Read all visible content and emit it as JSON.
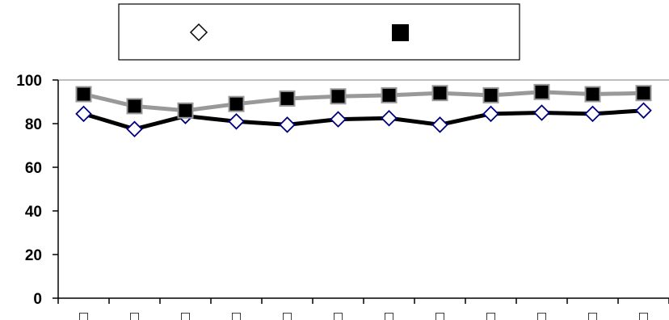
{
  "chart_data": {
    "type": "line",
    "title": "",
    "xlabel": "",
    "ylabel": "",
    "ylim": [
      0,
      100
    ],
    "yticks": [
      "0",
      "20",
      "40",
      "60",
      "80",
      "100"
    ],
    "categories": [
      "□",
      "□",
      "□",
      "□",
      "□",
      "□",
      "□",
      "□",
      "□",
      "□",
      "□",
      "□"
    ],
    "grid": false,
    "legend": {
      "placement": "top-center",
      "entries": [
        {
          "marker": "open-diamond",
          "label": ""
        },
        {
          "marker": "filled-square",
          "label": ""
        }
      ]
    },
    "series": [
      {
        "marker": "open-diamond",
        "line_color": "#000000",
        "marker_edge": "#000080",
        "values": [
          84.5,
          77.5,
          83.5,
          81,
          79.5,
          82,
          82.5,
          79.5,
          84.5,
          85,
          84.5,
          86
        ]
      },
      {
        "marker": "filled-square",
        "line_color": "#999999",
        "marker_fill": "#000000",
        "values": [
          93.5,
          88,
          86,
          89,
          91.5,
          92.5,
          93,
          94,
          93,
          94.5,
          93.5,
          94
        ]
      }
    ]
  }
}
